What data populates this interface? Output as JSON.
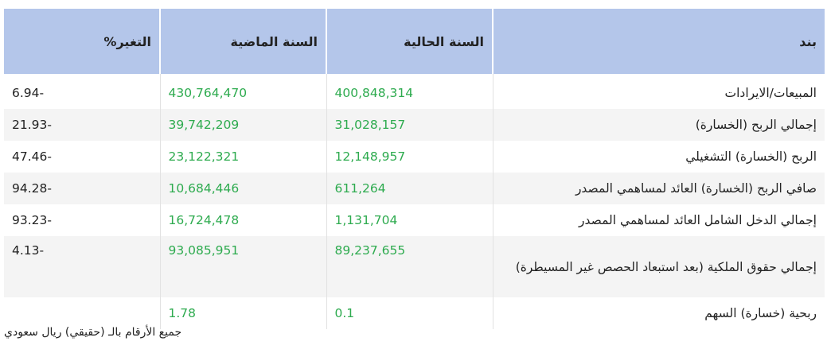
{
  "table": {
    "headers": {
      "item": "بند",
      "current_year": "السنة الحالية",
      "previous_year": "السنة الماضية",
      "change": "التغير%"
    },
    "rows": [
      {
        "item": "المبيعات/الايرادات",
        "current": "400,848,314",
        "previous": "430,764,470",
        "change": "-6.94"
      },
      {
        "item": "إجمالي الربح (الخسارة)",
        "current": "31,028,157",
        "previous": "39,742,209",
        "change": "-21.93"
      },
      {
        "item": "الربح (الخسارة) التشغيلي",
        "current": "12,148,957",
        "previous": "23,122,321",
        "change": "-47.46"
      },
      {
        "item": "صافي الربح (الخسارة) العائد لمساهمي المصدر",
        "current": "611,264",
        "previous": "10,684,446",
        "change": "-94.28"
      },
      {
        "item": "إجمالي الدخل الشامل العائد لمساهمي المصدر",
        "current": "1,131,704",
        "previous": "16,724,478",
        "change": "-93.23"
      },
      {
        "item": "إجمالي حقوق الملكية (بعد استبعاد الحصص غير المسيطرة)",
        "current": "89,237,655",
        "previous": "93,085,951",
        "change": "-4.13"
      },
      {
        "item": "ربحية (خسارة) السهم",
        "current": "0.1",
        "previous": "1.78",
        "change": ""
      }
    ]
  },
  "footnote": "جميع الأرقام بالـ (حقيقي) ريال سعودي",
  "colors": {
    "header_bg": "#b4c6ea",
    "value_text": "#2eab4f",
    "alt_row_bg": "#f4f4f4"
  }
}
